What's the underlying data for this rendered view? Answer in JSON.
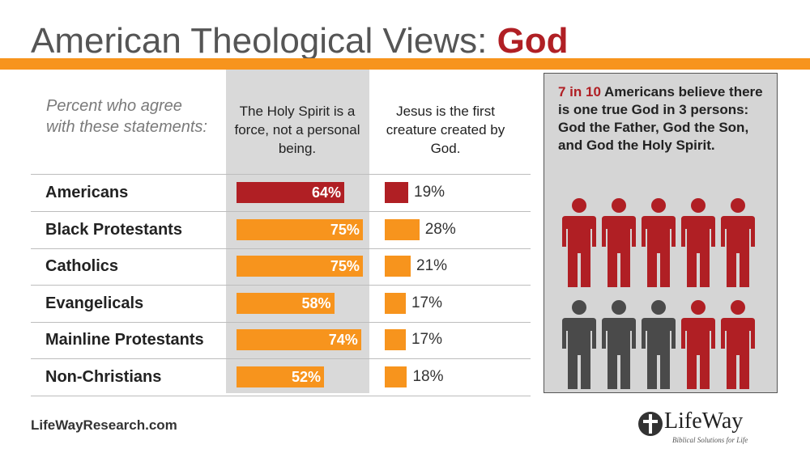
{
  "title": {
    "main": "American Theological Views:",
    "accent": "God"
  },
  "intro": "Percent who agree with these statements:",
  "columns": [
    "The Holy Spirit is a force, not a personal being.",
    "Jesus is the first creature created by God."
  ],
  "chart_data": {
    "type": "bar",
    "categories": [
      "Americans",
      "Black Protestants",
      "Catholics",
      "Evangelicals",
      "Mainline Protestants",
      "Non-Christians"
    ],
    "series": [
      {
        "name": "The Holy Spirit is a force, not a personal being.",
        "values": [
          64,
          75,
          75,
          58,
          74,
          52
        ],
        "labels": [
          "64%",
          "75%",
          "75%",
          "58%",
          "74%",
          "52%"
        ]
      },
      {
        "name": "Jesus is the first creature created by God.",
        "values": [
          19,
          28,
          21,
          17,
          17,
          18
        ],
        "labels": [
          "19%",
          "28%",
          "21%",
          "17%",
          "17%",
          "18%"
        ]
      }
    ],
    "highlight_category": "Americans",
    "colors": {
      "highlight": "#b01f24",
      "default": "#f7941d"
    },
    "orientation": "horizontal",
    "xlim": [
      0,
      100
    ]
  },
  "panel": {
    "highlight": "7 in 10",
    "text": "Americans believe there is one true God in 3 persons: God the Father, God the Son, and God the Holy Spirit.",
    "icon": "person-icon",
    "people": [
      "red",
      "red",
      "red",
      "red",
      "red",
      "gray",
      "gray",
      "gray",
      "red",
      "red"
    ],
    "colors": {
      "red": "#b01f24",
      "gray": "#4a4a4a"
    }
  },
  "footer": {
    "url": "LifeWayResearch.com",
    "logo": "LifeWay",
    "tagline": "Biblical Solutions for Life"
  },
  "colors": {
    "accent_red": "#b01f24",
    "accent_orange": "#f7941d",
    "shade": "#d9d9d9"
  }
}
